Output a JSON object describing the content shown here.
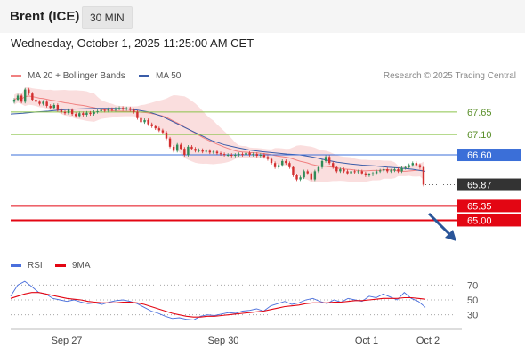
{
  "header": {
    "title": "Brent (ICE)",
    "timeframe": "30 MIN"
  },
  "datetime": "Wednesday, October 1, 2025 11:25:00 AM CET",
  "copyright": "Research © 2025 Trading Central",
  "colors": {
    "up": "#2e8b57",
    "down": "#d32f2f",
    "bollinger": "#f7c8c8",
    "ma20": "#f08080",
    "ma50": "#3a5ca8",
    "resistance": "#8bc34a",
    "pivot": "#3b6fd8",
    "support": "#e30613",
    "rsi": "#4a6fdc",
    "rsi_ma": "#e30613",
    "arrow": "#2a5599"
  },
  "chart_data": [
    {
      "type": "candlestick",
      "legend": [
        {
          "name": "MA 20 + Bollinger Bands",
          "color": "#f08080"
        },
        {
          "name": "MA 50",
          "color": "#3a5ca8"
        }
      ],
      "x_tick_labels": [
        "Sep 27",
        "Sep 30",
        "Oct 1",
        "Oct 2"
      ],
      "ylim": [
        64.4,
        68.3
      ],
      "closes": [
        67.95,
        68.05,
        67.9,
        68.2,
        68.1,
        67.95,
        67.9,
        67.85,
        67.9,
        67.8,
        67.75,
        67.82,
        67.7,
        67.65,
        67.62,
        67.7,
        67.6,
        67.55,
        67.62,
        67.58,
        67.63,
        67.6,
        67.65,
        67.67,
        67.7,
        67.68,
        67.72,
        67.7,
        67.73,
        67.75,
        67.72,
        67.74,
        67.7,
        67.65,
        67.5,
        67.4,
        67.45,
        67.35,
        67.3,
        67.25,
        67.2,
        67.15,
        67.0,
        66.8,
        66.7,
        66.85,
        66.75,
        66.6,
        66.8,
        66.75,
        66.7,
        66.72,
        66.68,
        66.7,
        66.66,
        66.68,
        66.64,
        66.62,
        66.6,
        66.6,
        66.58,
        66.6,
        66.62,
        66.6,
        66.65,
        66.6,
        66.62,
        66.58,
        66.6,
        66.55,
        66.5,
        66.4,
        66.3,
        66.35,
        66.45,
        66.4,
        66.3,
        66.1,
        66.0,
        66.05,
        66.2,
        66.15,
        66.0,
        66.2,
        66.3,
        66.45,
        66.55,
        66.4,
        66.3,
        66.2,
        66.25,
        66.2,
        66.15,
        66.2,
        66.18,
        66.2,
        66.15,
        66.1,
        66.12,
        66.15,
        66.2,
        66.22,
        66.25,
        66.2,
        66.22,
        66.25,
        66.2,
        66.28,
        66.3,
        66.35,
        66.4,
        66.35,
        66.3,
        65.87
      ],
      "candles_note": "values approximate, read off the price axis labels",
      "ma50": [
        67.6,
        67.62,
        67.65,
        67.67,
        67.7,
        67.72,
        67.73,
        67.74,
        67.74,
        67.73,
        67.7,
        67.65,
        67.55,
        67.4,
        67.25,
        67.1,
        66.95,
        66.85,
        66.78,
        66.72,
        66.68,
        66.65,
        66.62,
        66.6,
        66.55,
        66.48,
        66.42,
        66.38,
        66.35,
        66.33,
        66.3,
        66.28,
        66.25,
        66.2
      ],
      "levels": [
        {
          "label": "67.65",
          "role": "resistance",
          "value": 67.65
        },
        {
          "label": "67.10",
          "role": "resistance",
          "value": 67.1
        },
        {
          "label": "66.60",
          "role": "pivot",
          "value": 66.6
        },
        {
          "label": "65.87",
          "role": "last",
          "value": 65.87
        },
        {
          "label": "65.35",
          "role": "support",
          "value": 65.35
        },
        {
          "label": "65.00",
          "role": "support",
          "value": 65.0
        }
      ]
    },
    {
      "type": "line",
      "legend": [
        {
          "name": "RSI",
          "color": "#4a6fdc"
        },
        {
          "name": "9MA",
          "color": "#e30613"
        }
      ],
      "ylim": [
        20,
        80
      ],
      "y_ticks": [
        {
          "label": "70",
          "value": 70
        },
        {
          "label": "50",
          "value": 50
        },
        {
          "label": "30",
          "value": 30
        }
      ],
      "series": [
        {
          "name": "RSI",
          "values": [
            55,
            70,
            75,
            68,
            60,
            58,
            52,
            50,
            48,
            50,
            47,
            45,
            46,
            44,
            47,
            49,
            50,
            48,
            45,
            40,
            35,
            32,
            28,
            25,
            26,
            24,
            23,
            28,
            30,
            29,
            31,
            33,
            32,
            35,
            36,
            38,
            35,
            42,
            45,
            48,
            44,
            46,
            50,
            52,
            48,
            45,
            50,
            47,
            52,
            50,
            48,
            55,
            53,
            58,
            54,
            50,
            60,
            52,
            48,
            40
          ]
        },
        {
          "name": "9MA",
          "values": [
            52,
            55,
            58,
            60,
            60,
            58,
            56,
            54,
            52,
            51,
            50,
            48,
            47,
            46,
            46,
            46,
            47,
            47,
            46,
            44,
            41,
            38,
            35,
            32,
            30,
            28,
            27,
            27,
            28,
            28,
            29,
            30,
            31,
            32,
            33,
            34,
            35,
            37,
            39,
            41,
            42,
            43,
            45,
            46,
            46,
            46,
            47,
            47,
            48,
            49,
            49,
            50,
            51,
            52,
            52,
            52,
            53,
            53,
            52,
            51
          ]
        }
      ]
    }
  ]
}
